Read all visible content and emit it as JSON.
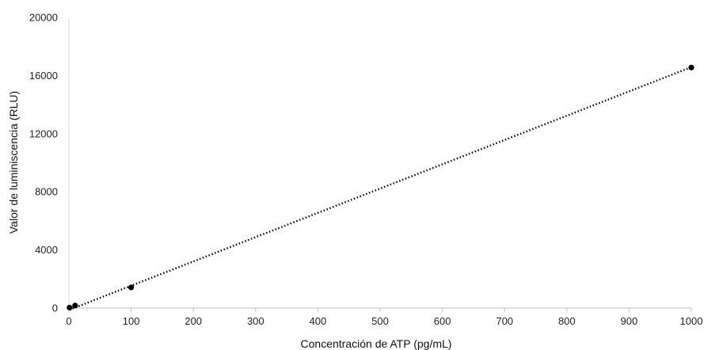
{
  "chart_data": {
    "type": "scatter",
    "title": "",
    "xlabel": "Concentración de ATP (pg/mL)",
    "ylabel": "Valor de luminiscencia (RLU)",
    "xlim": [
      0,
      1000
    ],
    "ylim": [
      0,
      20000
    ],
    "x_ticks": [
      0,
      100,
      200,
      300,
      400,
      500,
      600,
      700,
      800,
      900,
      1000
    ],
    "y_ticks": [
      0,
      4000,
      8000,
      12000,
      16000,
      20000
    ],
    "grid": false,
    "legend": "none",
    "series": [
      {
        "x": [
          1,
          10,
          100,
          1000
        ],
        "y": [
          30,
          170,
          1420,
          16550
        ],
        "marker_color": "#000000"
      }
    ],
    "trendline": {
      "style": "dotted",
      "color": "#000000",
      "x": [
        1,
        1000
      ],
      "y": [
        -120,
        16580
      ]
    }
  }
}
